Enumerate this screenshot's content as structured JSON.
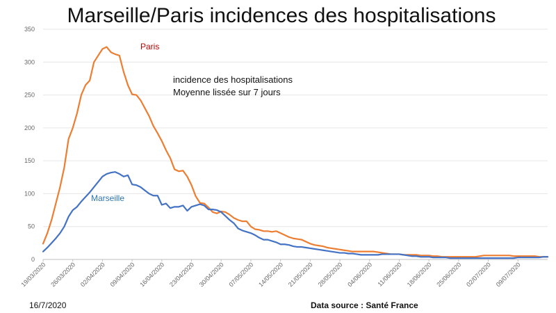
{
  "chart_data": {
    "type": "line",
    "title": "Marseille/Paris incidences des hospitalisations",
    "annotation_lines": [
      "incidence des hospitalisations",
      "Moyenne lissée sur 7 jours"
    ],
    "footer_left": "16/7/2020",
    "footer_right": "Data source : Santé France",
    "ylim": [
      0,
      350
    ],
    "yticks": [
      0,
      50,
      100,
      150,
      200,
      250,
      300,
      350
    ],
    "grid": true,
    "xlim": [
      "2020-03-19",
      "2020-07-16"
    ],
    "xticks": [
      "19/03/2020",
      "26/03/2020",
      "02/04/2020",
      "09/04/2020",
      "16/04/2020",
      "23/04/2020",
      "30/04/2020",
      "07/05/2020",
      "14/05/2020",
      "21/05/2020",
      "28/05/2020",
      "04/06/2020",
      "11/06/2020",
      "18/06/2020",
      "25/06/2020",
      "02/07/2020",
      "09/07/2020"
    ],
    "series": [
      {
        "name": "Paris",
        "color": "#ED7D31",
        "points": [
          [
            "2020-03-19",
            24
          ],
          [
            "2020-03-20",
            40
          ],
          [
            "2020-03-21",
            60
          ],
          [
            "2020-03-22",
            85
          ],
          [
            "2020-03-23",
            110
          ],
          [
            "2020-03-24",
            140
          ],
          [
            "2020-03-25",
            183
          ],
          [
            "2020-03-26",
            200
          ],
          [
            "2020-03-27",
            222
          ],
          [
            "2020-03-28",
            250
          ],
          [
            "2020-03-29",
            265
          ],
          [
            "2020-03-30",
            272
          ],
          [
            "2020-03-31",
            300
          ],
          [
            "2020-04-01",
            310
          ],
          [
            "2020-04-02",
            320
          ],
          [
            "2020-04-03",
            323
          ],
          [
            "2020-04-04",
            315
          ],
          [
            "2020-04-05",
            312
          ],
          [
            "2020-04-06",
            310
          ],
          [
            "2020-04-07",
            285
          ],
          [
            "2020-04-08",
            265
          ],
          [
            "2020-04-09",
            251
          ],
          [
            "2020-04-10",
            250
          ],
          [
            "2020-04-11",
            242
          ],
          [
            "2020-04-12",
            230
          ],
          [
            "2020-04-13",
            218
          ],
          [
            "2020-04-14",
            203
          ],
          [
            "2020-04-15",
            192
          ],
          [
            "2020-04-16",
            180
          ],
          [
            "2020-04-17",
            166
          ],
          [
            "2020-04-18",
            154
          ],
          [
            "2020-04-19",
            137
          ],
          [
            "2020-04-20",
            134
          ],
          [
            "2020-04-21",
            135
          ],
          [
            "2020-04-22",
            126
          ],
          [
            "2020-04-23",
            113
          ],
          [
            "2020-04-24",
            96
          ],
          [
            "2020-04-25",
            86
          ],
          [
            "2020-04-26",
            85
          ],
          [
            "2020-04-27",
            79
          ],
          [
            "2020-04-28",
            72
          ],
          [
            "2020-04-29",
            70
          ],
          [
            "2020-04-30",
            73
          ],
          [
            "2020-05-01",
            72
          ],
          [
            "2020-05-02",
            68
          ],
          [
            "2020-05-03",
            63
          ],
          [
            "2020-05-04",
            60
          ],
          [
            "2020-05-05",
            58
          ],
          [
            "2020-05-06",
            58
          ],
          [
            "2020-05-07",
            50
          ],
          [
            "2020-05-08",
            46
          ],
          [
            "2020-05-09",
            45
          ],
          [
            "2020-05-10",
            43
          ],
          [
            "2020-05-11",
            43
          ],
          [
            "2020-05-12",
            42
          ],
          [
            "2020-05-13",
            43
          ],
          [
            "2020-05-14",
            40
          ],
          [
            "2020-05-15",
            37
          ],
          [
            "2020-05-16",
            34
          ],
          [
            "2020-05-17",
            32
          ],
          [
            "2020-05-18",
            31
          ],
          [
            "2020-05-19",
            30
          ],
          [
            "2020-05-20",
            27
          ],
          [
            "2020-05-21",
            24
          ],
          [
            "2020-05-22",
            22
          ],
          [
            "2020-05-23",
            21
          ],
          [
            "2020-05-24",
            20
          ],
          [
            "2020-05-25",
            18
          ],
          [
            "2020-05-26",
            17
          ],
          [
            "2020-05-27",
            16
          ],
          [
            "2020-05-28",
            15
          ],
          [
            "2020-05-29",
            14
          ],
          [
            "2020-05-30",
            13
          ],
          [
            "2020-05-31",
            12
          ],
          [
            "2020-06-01",
            12
          ],
          [
            "2020-06-02",
            12
          ],
          [
            "2020-06-03",
            12
          ],
          [
            "2020-06-04",
            12
          ],
          [
            "2020-06-05",
            12
          ],
          [
            "2020-06-06",
            11
          ],
          [
            "2020-06-07",
            10
          ],
          [
            "2020-06-08",
            9
          ],
          [
            "2020-06-09",
            8
          ],
          [
            "2020-06-10",
            8
          ],
          [
            "2020-06-11",
            8
          ],
          [
            "2020-06-12",
            7
          ],
          [
            "2020-06-13",
            7
          ],
          [
            "2020-06-14",
            7
          ],
          [
            "2020-06-15",
            7
          ],
          [
            "2020-06-16",
            6
          ],
          [
            "2020-06-17",
            6
          ],
          [
            "2020-06-18",
            6
          ],
          [
            "2020-06-19",
            5
          ],
          [
            "2020-06-20",
            5
          ],
          [
            "2020-06-21",
            4
          ],
          [
            "2020-06-22",
            4
          ],
          [
            "2020-06-23",
            4
          ],
          [
            "2020-06-24",
            4
          ],
          [
            "2020-06-25",
            4
          ],
          [
            "2020-06-26",
            4
          ],
          [
            "2020-06-27",
            4
          ],
          [
            "2020-06-28",
            4
          ],
          [
            "2020-06-29",
            4
          ],
          [
            "2020-06-30",
            5
          ],
          [
            "2020-07-01",
            6
          ],
          [
            "2020-07-02",
            6
          ],
          [
            "2020-07-03",
            6
          ],
          [
            "2020-07-04",
            6
          ],
          [
            "2020-07-05",
            6
          ],
          [
            "2020-07-06",
            6
          ],
          [
            "2020-07-07",
            6
          ],
          [
            "2020-07-08",
            5
          ],
          [
            "2020-07-09",
            5
          ],
          [
            "2020-07-10",
            5
          ],
          [
            "2020-07-11",
            5
          ],
          [
            "2020-07-12",
            5
          ],
          [
            "2020-07-13",
            5
          ],
          [
            "2020-07-14",
            4
          ],
          [
            "2020-07-15",
            4
          ],
          [
            "2020-07-16",
            4
          ]
        ]
      },
      {
        "name": "Marseille",
        "color": "#4472C4",
        "points": [
          [
            "2020-03-19",
            12
          ],
          [
            "2020-03-20",
            18
          ],
          [
            "2020-03-21",
            25
          ],
          [
            "2020-03-22",
            32
          ],
          [
            "2020-03-23",
            40
          ],
          [
            "2020-03-24",
            50
          ],
          [
            "2020-03-25",
            65
          ],
          [
            "2020-03-26",
            75
          ],
          [
            "2020-03-27",
            80
          ],
          [
            "2020-03-28",
            88
          ],
          [
            "2020-03-29",
            95
          ],
          [
            "2020-03-30",
            102
          ],
          [
            "2020-03-31",
            110
          ],
          [
            "2020-04-01",
            118
          ],
          [
            "2020-04-02",
            126
          ],
          [
            "2020-04-03",
            130
          ],
          [
            "2020-04-04",
            132
          ],
          [
            "2020-04-05",
            133
          ],
          [
            "2020-04-06",
            130
          ],
          [
            "2020-04-07",
            126
          ],
          [
            "2020-04-08",
            128
          ],
          [
            "2020-04-09",
            114
          ],
          [
            "2020-04-10",
            113
          ],
          [
            "2020-04-11",
            110
          ],
          [
            "2020-04-12",
            105
          ],
          [
            "2020-04-13",
            100
          ],
          [
            "2020-04-14",
            97
          ],
          [
            "2020-04-15",
            97
          ],
          [
            "2020-04-16",
            83
          ],
          [
            "2020-04-17",
            85
          ],
          [
            "2020-04-18",
            78
          ],
          [
            "2020-04-19",
            80
          ],
          [
            "2020-04-20",
            80
          ],
          [
            "2020-04-21",
            82
          ],
          [
            "2020-04-22",
            74
          ],
          [
            "2020-04-23",
            80
          ],
          [
            "2020-04-24",
            82
          ],
          [
            "2020-04-25",
            84
          ],
          [
            "2020-04-26",
            82
          ],
          [
            "2020-04-27",
            76
          ],
          [
            "2020-04-28",
            76
          ],
          [
            "2020-04-29",
            75
          ],
          [
            "2020-04-30",
            72
          ],
          [
            "2020-05-01",
            66
          ],
          [
            "2020-05-02",
            60
          ],
          [
            "2020-05-03",
            55
          ],
          [
            "2020-05-04",
            47
          ],
          [
            "2020-05-05",
            44
          ],
          [
            "2020-05-06",
            42
          ],
          [
            "2020-05-07",
            40
          ],
          [
            "2020-05-08",
            37
          ],
          [
            "2020-05-09",
            33
          ],
          [
            "2020-05-10",
            30
          ],
          [
            "2020-05-11",
            30
          ],
          [
            "2020-05-12",
            28
          ],
          [
            "2020-05-13",
            26
          ],
          [
            "2020-05-14",
            23
          ],
          [
            "2020-05-15",
            23
          ],
          [
            "2020-05-16",
            22
          ],
          [
            "2020-05-17",
            20
          ],
          [
            "2020-05-18",
            19
          ],
          [
            "2020-05-19",
            19
          ],
          [
            "2020-05-20",
            18
          ],
          [
            "2020-05-21",
            17
          ],
          [
            "2020-05-22",
            16
          ],
          [
            "2020-05-23",
            15
          ],
          [
            "2020-05-24",
            14
          ],
          [
            "2020-05-25",
            13
          ],
          [
            "2020-05-26",
            12
          ],
          [
            "2020-05-27",
            11
          ],
          [
            "2020-05-28",
            10
          ],
          [
            "2020-05-29",
            10
          ],
          [
            "2020-05-30",
            9
          ],
          [
            "2020-05-31",
            9
          ],
          [
            "2020-06-01",
            8
          ],
          [
            "2020-06-02",
            7
          ],
          [
            "2020-06-03",
            7
          ],
          [
            "2020-06-04",
            7
          ],
          [
            "2020-06-05",
            7
          ],
          [
            "2020-06-06",
            7
          ],
          [
            "2020-06-07",
            8
          ],
          [
            "2020-06-08",
            8
          ],
          [
            "2020-06-09",
            8
          ],
          [
            "2020-06-10",
            8
          ],
          [
            "2020-06-11",
            8
          ],
          [
            "2020-06-12",
            7
          ],
          [
            "2020-06-13",
            6
          ],
          [
            "2020-06-14",
            5
          ],
          [
            "2020-06-15",
            5
          ],
          [
            "2020-06-16",
            4
          ],
          [
            "2020-06-17",
            4
          ],
          [
            "2020-06-18",
            4
          ],
          [
            "2020-06-19",
            3
          ],
          [
            "2020-06-20",
            3
          ],
          [
            "2020-06-21",
            3
          ],
          [
            "2020-06-22",
            3
          ],
          [
            "2020-06-23",
            2
          ],
          [
            "2020-06-24",
            2
          ],
          [
            "2020-06-25",
            2
          ],
          [
            "2020-06-26",
            2
          ],
          [
            "2020-06-27",
            2
          ],
          [
            "2020-06-28",
            2
          ],
          [
            "2020-06-29",
            2
          ],
          [
            "2020-06-30",
            2
          ],
          [
            "2020-07-01",
            2
          ],
          [
            "2020-07-02",
            2
          ],
          [
            "2020-07-03",
            2
          ],
          [
            "2020-07-04",
            2
          ],
          [
            "2020-07-05",
            2
          ],
          [
            "2020-07-06",
            2
          ],
          [
            "2020-07-07",
            2
          ],
          [
            "2020-07-08",
            2
          ],
          [
            "2020-07-09",
            3
          ],
          [
            "2020-07-10",
            3
          ],
          [
            "2020-07-11",
            3
          ],
          [
            "2020-07-12",
            3
          ],
          [
            "2020-07-13",
            3
          ],
          [
            "2020-07-14",
            3
          ],
          [
            "2020-07-15",
            4
          ],
          [
            "2020-07-16",
            4
          ]
        ]
      }
    ]
  }
}
